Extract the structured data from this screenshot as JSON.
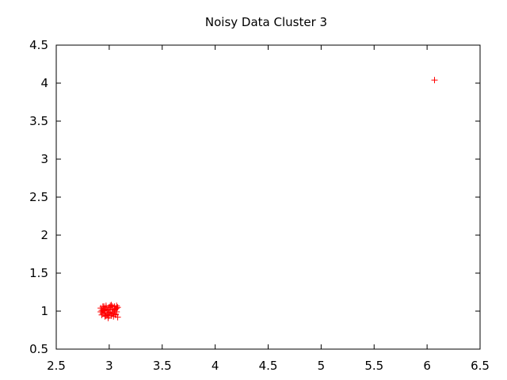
{
  "chart_data": {
    "type": "scatter",
    "title": "Noisy Data Cluster 3",
    "xlabel": "",
    "ylabel": "",
    "xlim": [
      2.5,
      6.5
    ],
    "ylim": [
      0.5,
      4.5
    ],
    "x_ticks": [
      2.5,
      3,
      3.5,
      4,
      4.5,
      5,
      5.5,
      6,
      6.5
    ],
    "y_ticks": [
      0.5,
      1,
      1.5,
      2,
      2.5,
      3,
      3.5,
      4,
      4.5
    ],
    "x_tick_labels": [
      "2.5",
      "3",
      "3.5",
      "4",
      "4.5",
      "5",
      "5.5",
      "6",
      "6.5"
    ],
    "y_tick_labels": [
      "0.5",
      "1",
      "1.5",
      "2",
      "2.5",
      "3",
      "3.5",
      "4",
      "4.5"
    ],
    "grid": false,
    "legend": "none",
    "marker": "plus",
    "series": [
      {
        "color": "#ff0000",
        "x": [
          2.92,
          2.94,
          2.93,
          2.95,
          2.96,
          2.97,
          2.98,
          2.99,
          3.0,
          3.01,
          3.02,
          3.03,
          3.04,
          3.05,
          3.06,
          3.07,
          3.08,
          2.93,
          2.95,
          2.97,
          2.99,
          3.01,
          3.03,
          3.05,
          3.07,
          2.94,
          2.96,
          2.98,
          3.0,
          3.02,
          3.04,
          3.06,
          3.08,
          2.92,
          2.96,
          3.0,
          3.04,
          3.07,
          2.95,
          2.99,
          3.03,
          3.06,
          2.97,
          3.01,
          3.05,
          6.07
        ],
        "y": [
          1.04,
          0.97,
          1.01,
          1.06,
          0.93,
          1.05,
          0.95,
          1.02,
          0.98,
          1.07,
          0.94,
          1.03,
          0.99,
          1.06,
          0.96,
          1.04,
          0.92,
          0.95,
          1.0,
          1.07,
          0.91,
          1.05,
          0.97,
          1.02,
          0.99,
          1.06,
          0.98,
          1.01,
          0.94,
          1.08,
          0.96,
          1.03,
          1.05,
          0.99,
          1.03,
          1.05,
          0.93,
          1.07,
          1.02,
          0.96,
          1.06,
          0.95,
          0.94,
          0.99,
          1.01,
          4.04
        ]
      }
    ]
  }
}
